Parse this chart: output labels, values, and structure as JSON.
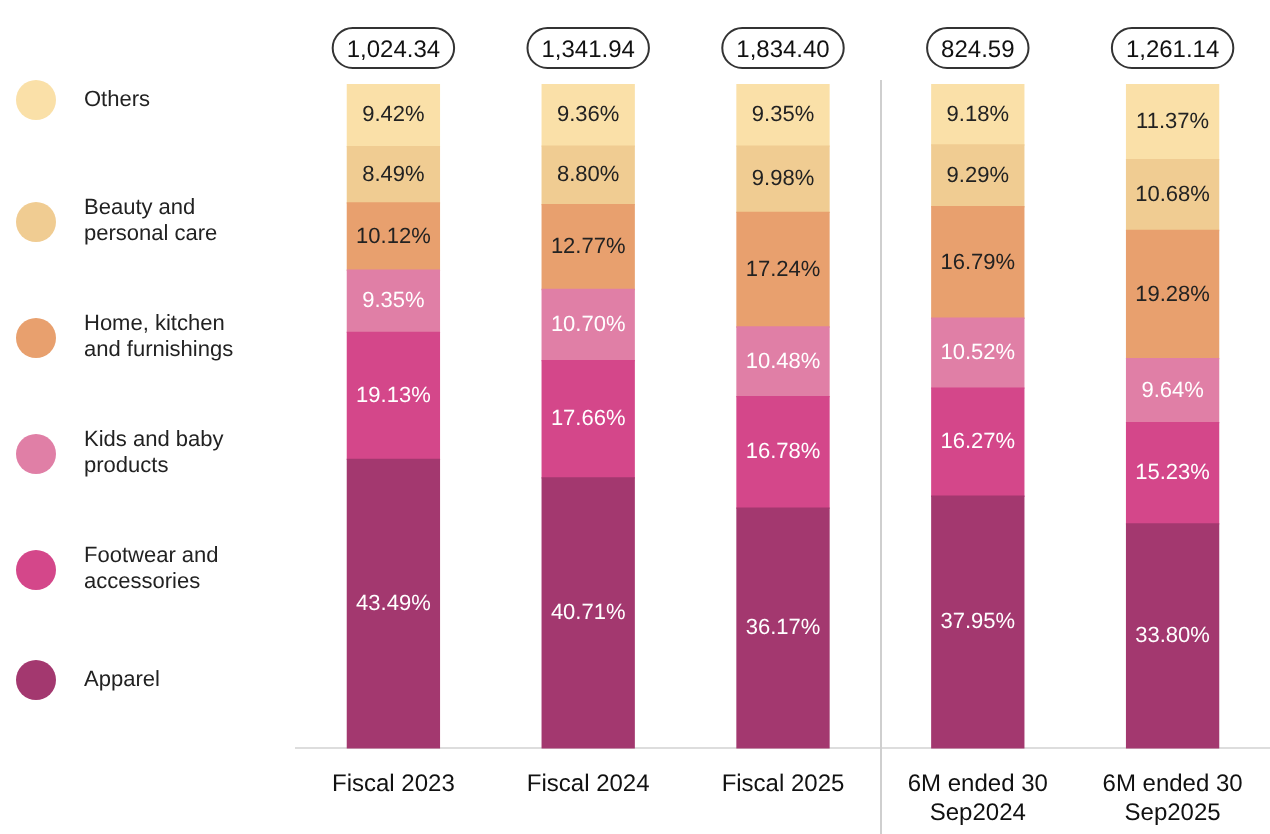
{
  "chart_data": {
    "type": "bar",
    "stacked": true,
    "legend": "left",
    "categories": [
      "Fiscal 2023",
      "Fiscal 2024",
      "Fiscal 2025",
      "6M ended 30 Sep2024",
      "6M ended 30 Sep2025"
    ],
    "series": [
      {
        "name": "Apparel",
        "color": "#a3386f",
        "values": [
          43.49,
          40.71,
          36.17,
          37.95,
          33.8
        ],
        "value_labels": [
          "43.49%",
          "40.71%",
          "36.17%",
          "37.95%",
          "33.80%"
        ]
      },
      {
        "name": "Footwear and accessories",
        "color": "#d4478a",
        "values": [
          19.13,
          17.66,
          16.78,
          16.27,
          15.23
        ],
        "value_labels": [
          "19.13%",
          "17.66%",
          "16.78%",
          "16.27%",
          "15.23%"
        ]
      },
      {
        "name": "Kids and baby products",
        "color": "#e07fa6",
        "values": [
          9.35,
          10.7,
          10.48,
          10.52,
          9.64
        ],
        "value_labels": [
          "9.35%",
          "10.70%",
          "10.48%",
          "10.52%",
          "9.64%"
        ]
      },
      {
        "name": "Home, kitchen and furnishings",
        "color": "#e8a06e",
        "values": [
          10.12,
          12.77,
          17.24,
          16.79,
          19.28
        ],
        "value_labels": [
          "10.12%",
          "12.77%",
          "17.24%",
          "16.79%",
          "19.28%"
        ]
      },
      {
        "name": "Beauty and personal care",
        "color": "#f0cc92",
        "values": [
          8.49,
          8.8,
          9.98,
          9.29,
          10.68
        ],
        "value_labels": [
          "8.49%",
          "8.80%",
          "9.98%",
          "9.29%",
          "10.68%"
        ]
      },
      {
        "name": "Others",
        "color": "#fae0a8",
        "values": [
          9.42,
          9.36,
          9.35,
          9.18,
          11.37
        ],
        "value_labels": [
          "9.42%",
          "9.36%",
          "9.35%",
          "9.18%",
          "11.37%"
        ]
      }
    ],
    "annotations": [
      {
        "text": "1,024.34",
        "x": "Fiscal 2023",
        "y": 100
      },
      {
        "text": "1,341.94",
        "x": "Fiscal 2024",
        "y": 100
      },
      {
        "text": "1,834.40",
        "x": "Fiscal 2025",
        "y": 100
      },
      {
        "text": "824.59",
        "x": "6M ended 30 Sep2024",
        "y": 100
      },
      {
        "text": "1,261.14",
        "x": "6M ended 30 Sep2025",
        "y": 100
      }
    ]
  }
}
